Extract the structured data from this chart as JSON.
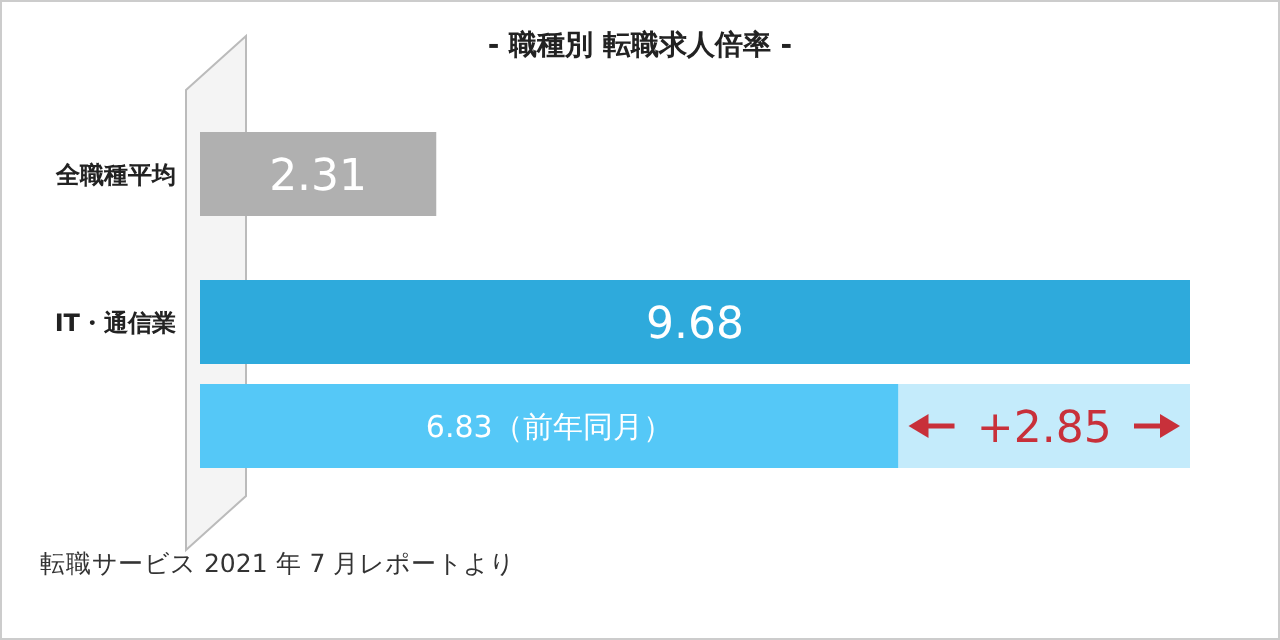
{
  "chart_data": {
    "type": "bar",
    "orientation": "horizontal",
    "stacked": true,
    "title": "- 職種別 転職求人倍率 -",
    "categories": [
      "全職種平均",
      "IT・通信業",
      null
    ],
    "series": [
      {
        "colors": [
          "#b0b0b0",
          "#2eaadc",
          "#55c8f7"
        ],
        "values": [
          2.31,
          9.68,
          6.83
        ],
        "value_labels": [
          "2.31",
          "9.68",
          "6.83（前年同月）"
        ]
      },
      {
        "color": "#c4ebfb",
        "values": [
          null,
          null,
          2.85
        ],
        "value_labels": [
          null,
          null,
          "+2.85"
        ]
      }
    ],
    "annotations": [
      "転職サービス 2021 年 7 月レポートより"
    ]
  }
}
